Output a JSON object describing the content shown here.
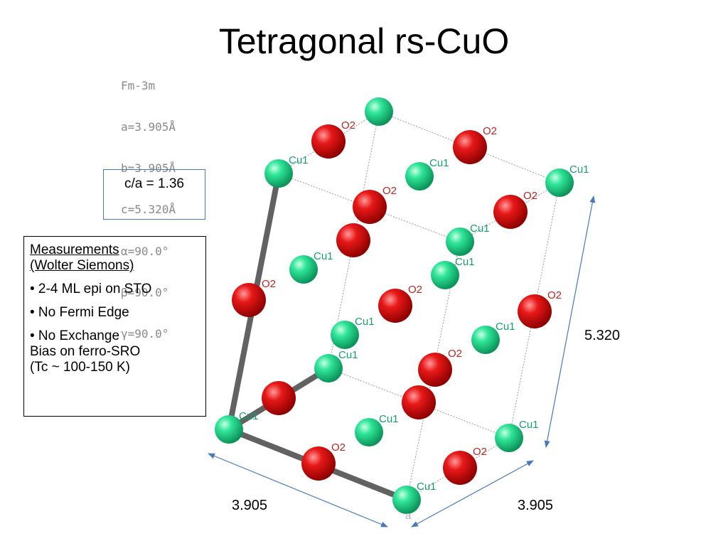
{
  "title": "Tetragonal rs-CuO",
  "params": [
    "Fm-3m",
    "a=3.905Å",
    "b=3.905Å",
    "c=5.320Å",
    "α=90.0°",
    "β=90.0°",
    "γ=90.0°"
  ],
  "ratio_box": {
    "text": "c/a = 1.36"
  },
  "measurements": {
    "heading_1": "Measurements",
    "heading_2": "(Wolter Siemons)",
    "bullets": [
      "• 2-4 ML epi on STO",
      "• No Fermi Edge",
      "• No Exchange\nBias on ferro-SRO\n(Tc ~ 100-150 K)"
    ]
  },
  "dimensions": {
    "c": "5.320",
    "a": "3.905",
    "b": "3.905"
  },
  "atom_labels": {
    "cu": "Cu1",
    "o": "O2"
  },
  "axis_label": "a",
  "colors": {
    "cu": "#19d483",
    "o": "#dd0a0a",
    "axis": "#626262",
    "arrow": "#4a78b8",
    "cell": "#9a9a9a"
  }
}
